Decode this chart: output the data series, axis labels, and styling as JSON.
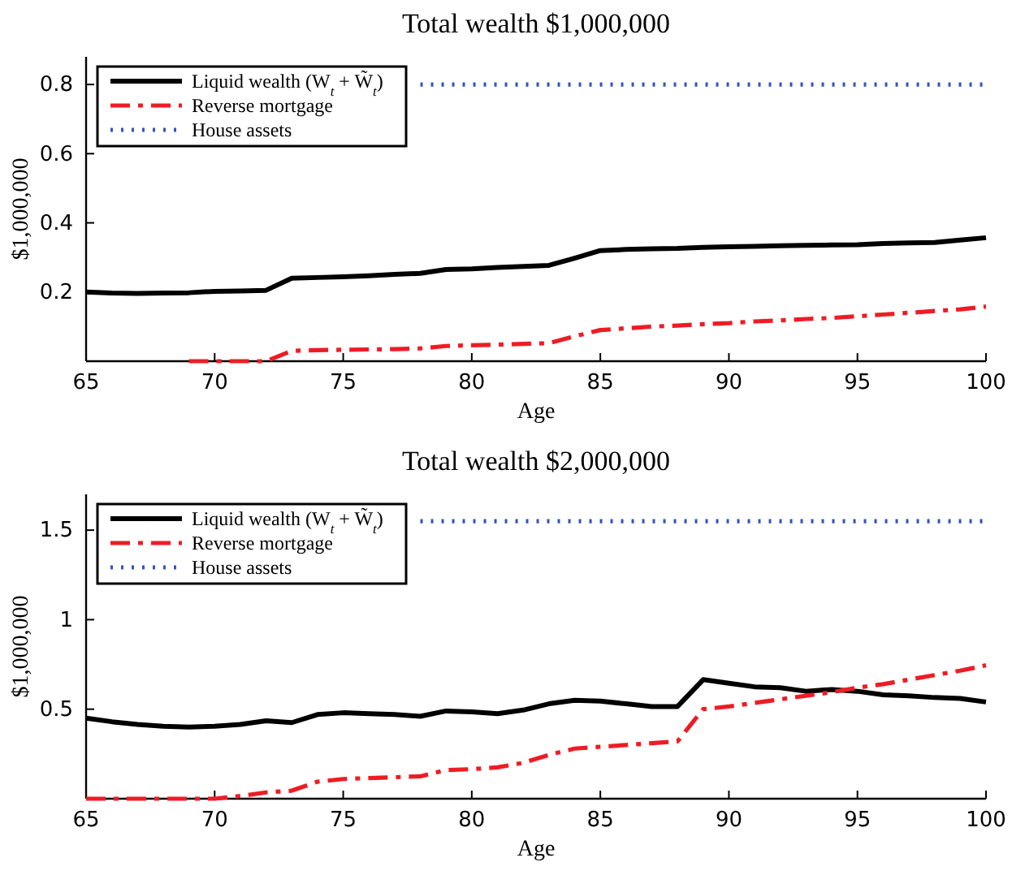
{
  "chart_data": [
    {
      "type": "line",
      "title": "Total wealth $1,000,000",
      "xlabel": "Age",
      "ylabel": "$1,000,000",
      "xlim": [
        65,
        100
      ],
      "xticks": [
        65,
        70,
        75,
        80,
        85,
        90,
        95,
        100
      ],
      "ylim": [
        0,
        0.88
      ],
      "yticks": [
        0.2,
        0.4,
        0.6,
        0.8
      ],
      "legend": "top left",
      "grid": false,
      "series": [
        {
          "name": "Liquid wealth (W$_{t}$ + W̃$_{t}$)",
          "color": "#000000",
          "line_style": "solid",
          "x": [
            65,
            66,
            67,
            68,
            69,
            70,
            71,
            72,
            73,
            74,
            75,
            76,
            77,
            78,
            79,
            80,
            81,
            82,
            83,
            84,
            85,
            86,
            87,
            88,
            89,
            90,
            91,
            92,
            93,
            94,
            95,
            96,
            97,
            98,
            99,
            100
          ],
          "values": [
            0.2,
            0.197,
            0.196,
            0.197,
            0.198,
            0.202,
            0.203,
            0.205,
            0.24,
            0.242,
            0.244,
            0.247,
            0.251,
            0.254,
            0.265,
            0.267,
            0.271,
            0.274,
            0.277,
            0.298,
            0.32,
            0.323,
            0.325,
            0.326,
            0.329,
            0.331,
            0.332,
            0.334,
            0.335,
            0.336,
            0.337,
            0.34,
            0.342,
            0.343,
            0.35,
            0.357
          ]
        },
        {
          "name": "Reverse mortgage",
          "color": "#ee1c25",
          "line_style": "dashed",
          "x": [
            69,
            70,
            71,
            72,
            73,
            74,
            75,
            76,
            77,
            78,
            79,
            80,
            81,
            82,
            83,
            84,
            85,
            86,
            87,
            88,
            89,
            90,
            91,
            92,
            93,
            94,
            95,
            96,
            97,
            98,
            99,
            100
          ],
          "values": [
            0,
            0,
            0,
            0,
            0.03,
            0.032,
            0.033,
            0.034,
            0.035,
            0.037,
            0.044,
            0.046,
            0.048,
            0.05,
            0.052,
            0.072,
            0.09,
            0.095,
            0.1,
            0.103,
            0.107,
            0.11,
            0.115,
            0.118,
            0.122,
            0.125,
            0.13,
            0.135,
            0.14,
            0.145,
            0.15,
            0.158
          ]
        },
        {
          "name": "House assets",
          "color": "#3355bb",
          "line_style": "dotted",
          "x": [
            78,
            100
          ],
          "values": [
            0.8,
            0.8
          ]
        }
      ]
    },
    {
      "type": "line",
      "title": "Total wealth $2,000,000",
      "xlabel": "Age",
      "ylabel": "$1,000,000",
      "xlim": [
        65,
        100
      ],
      "xticks": [
        65,
        70,
        75,
        80,
        85,
        90,
        95,
        100
      ],
      "ylim": [
        0,
        1.7
      ],
      "yticks": [
        0.5,
        1,
        1.5
      ],
      "legend": "top left",
      "grid": false,
      "series": [
        {
          "name": "Liquid wealth (W$_{t}$ + W̃$_{t}$)",
          "color": "#000000",
          "line_style": "solid",
          "x": [
            65,
            66,
            67,
            68,
            69,
            70,
            71,
            72,
            73,
            74,
            75,
            76,
            77,
            78,
            79,
            80,
            81,
            82,
            83,
            84,
            85,
            86,
            87,
            88,
            89,
            90,
            91,
            92,
            93,
            94,
            95,
            96,
            97,
            98,
            99,
            100
          ],
          "values": [
            0.45,
            0.43,
            0.415,
            0.405,
            0.4,
            0.405,
            0.415,
            0.435,
            0.425,
            0.47,
            0.48,
            0.475,
            0.47,
            0.46,
            0.49,
            0.485,
            0.475,
            0.495,
            0.53,
            0.55,
            0.545,
            0.53,
            0.515,
            0.515,
            0.665,
            0.645,
            0.625,
            0.62,
            0.6,
            0.61,
            0.6,
            0.58,
            0.575,
            0.565,
            0.56,
            0.54
          ]
        },
        {
          "name": "Reverse mortgage",
          "color": "#ee1c25",
          "line_style": "dashed",
          "x": [
            65,
            66,
            67,
            68,
            69,
            70,
            71,
            72,
            73,
            74,
            75,
            76,
            77,
            78,
            79,
            80,
            81,
            82,
            83,
            84,
            85,
            86,
            87,
            88,
            89,
            90,
            91,
            92,
            93,
            94,
            95,
            96,
            97,
            98,
            99,
            100
          ],
          "values": [
            0,
            0,
            0,
            0,
            0,
            0,
            0.015,
            0.035,
            0.045,
            0.095,
            0.11,
            0.115,
            0.12,
            0.125,
            0.16,
            0.165,
            0.175,
            0.2,
            0.245,
            0.28,
            0.29,
            0.3,
            0.31,
            0.32,
            0.5,
            0.515,
            0.535,
            0.555,
            0.575,
            0.595,
            0.62,
            0.64,
            0.665,
            0.69,
            0.715,
            0.745
          ]
        },
        {
          "name": "House assets",
          "color": "#3355bb",
          "line_style": "dotted",
          "x": [
            78,
            100
          ],
          "values": [
            1.55,
            1.55
          ]
        }
      ]
    }
  ]
}
